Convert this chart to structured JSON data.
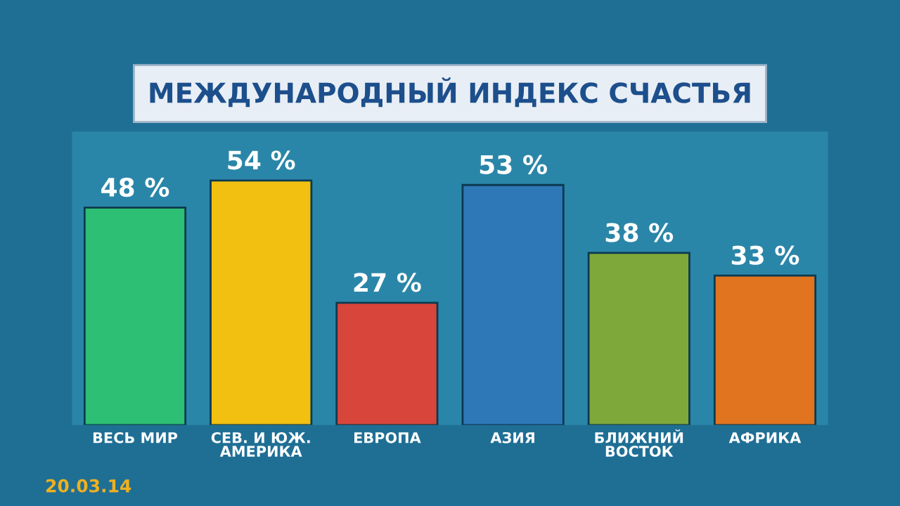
{
  "chart_data": {
    "type": "bar",
    "title": "МЕЖДУНАРОДНЫЙ ИНДЕКС СЧАСТЬЯ",
    "categories": [
      "ВЕСЬ МИР",
      "СЕВ. И ЮЖ.\nАМЕРИКА",
      "ЕВРОПА",
      "АЗИЯ",
      "БЛИЖНИЙ\nВОСТОК",
      "АФРИКА"
    ],
    "values": [
      48,
      54,
      27,
      53,
      38,
      33
    ],
    "colors": [
      "#2dbf73",
      "#f2c010",
      "#d8453a",
      "#2f78b8",
      "#7fa83a",
      "#e0741f"
    ],
    "value_labels": [
      "48 %",
      "54 %",
      "27 %",
      "53 %",
      "38 %",
      "33 %"
    ],
    "annotations": [
      "20.03.14"
    ],
    "grid": false,
    "legend": false
  }
}
